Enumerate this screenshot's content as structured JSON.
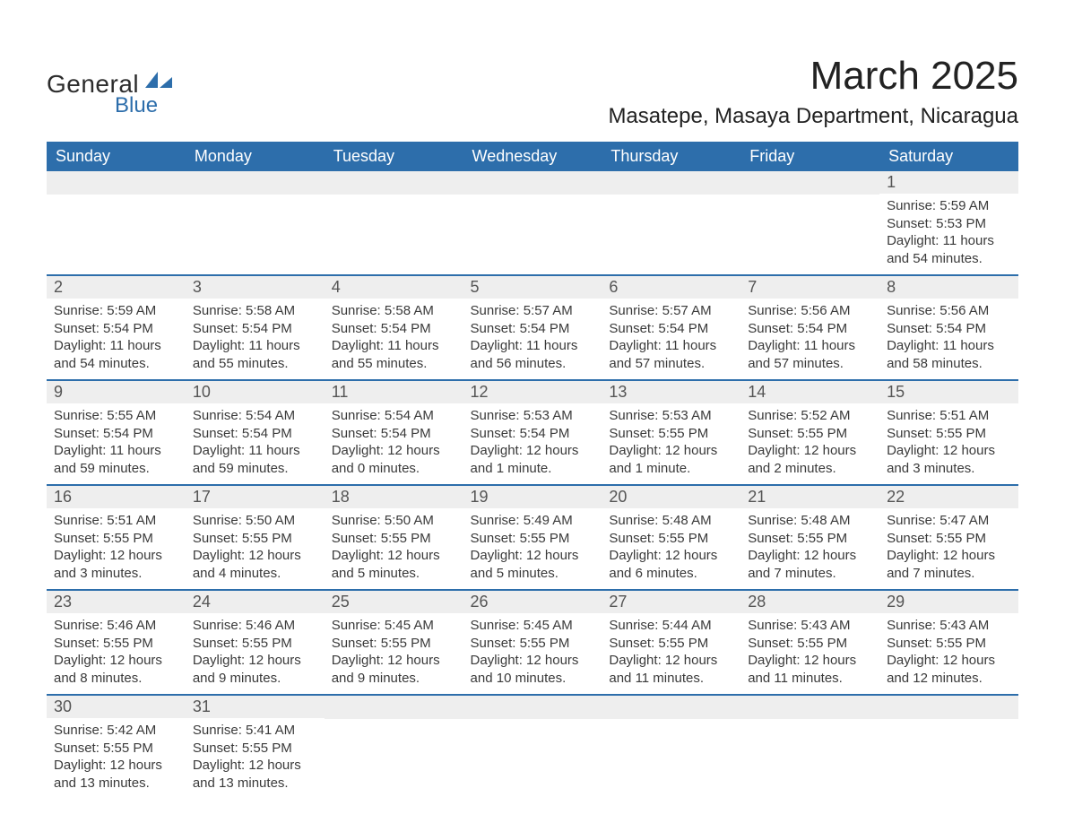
{
  "logo": {
    "general": "General",
    "blue": "Blue"
  },
  "title": "March 2025",
  "location": "Masatepe, Masaya Department, Nicaragua",
  "colors": {
    "header_bg": "#2d6eab",
    "header_text": "#ffffff",
    "daynum_bg": "#eeeeee",
    "row_border": "#2d6eab",
    "text": "#3a3a3a",
    "background": "#ffffff"
  },
  "table": {
    "columns": [
      "Sunday",
      "Monday",
      "Tuesday",
      "Wednesday",
      "Thursday",
      "Friday",
      "Saturday"
    ],
    "weeks": [
      [
        null,
        null,
        null,
        null,
        null,
        null,
        {
          "n": "1",
          "sr": "5:59 AM",
          "ss": "5:53 PM",
          "dl": "11 hours and 54 minutes."
        }
      ],
      [
        {
          "n": "2",
          "sr": "5:59 AM",
          "ss": "5:54 PM",
          "dl": "11 hours and 54 minutes."
        },
        {
          "n": "3",
          "sr": "5:58 AM",
          "ss": "5:54 PM",
          "dl": "11 hours and 55 minutes."
        },
        {
          "n": "4",
          "sr": "5:58 AM",
          "ss": "5:54 PM",
          "dl": "11 hours and 55 minutes."
        },
        {
          "n": "5",
          "sr": "5:57 AM",
          "ss": "5:54 PM",
          "dl": "11 hours and 56 minutes."
        },
        {
          "n": "6",
          "sr": "5:57 AM",
          "ss": "5:54 PM",
          "dl": "11 hours and 57 minutes."
        },
        {
          "n": "7",
          "sr": "5:56 AM",
          "ss": "5:54 PM",
          "dl": "11 hours and 57 minutes."
        },
        {
          "n": "8",
          "sr": "5:56 AM",
          "ss": "5:54 PM",
          "dl": "11 hours and 58 minutes."
        }
      ],
      [
        {
          "n": "9",
          "sr": "5:55 AM",
          "ss": "5:54 PM",
          "dl": "11 hours and 59 minutes."
        },
        {
          "n": "10",
          "sr": "5:54 AM",
          "ss": "5:54 PM",
          "dl": "11 hours and 59 minutes."
        },
        {
          "n": "11",
          "sr": "5:54 AM",
          "ss": "5:54 PM",
          "dl": "12 hours and 0 minutes."
        },
        {
          "n": "12",
          "sr": "5:53 AM",
          "ss": "5:54 PM",
          "dl": "12 hours and 1 minute."
        },
        {
          "n": "13",
          "sr": "5:53 AM",
          "ss": "5:55 PM",
          "dl": "12 hours and 1 minute."
        },
        {
          "n": "14",
          "sr": "5:52 AM",
          "ss": "5:55 PM",
          "dl": "12 hours and 2 minutes."
        },
        {
          "n": "15",
          "sr": "5:51 AM",
          "ss": "5:55 PM",
          "dl": "12 hours and 3 minutes."
        }
      ],
      [
        {
          "n": "16",
          "sr": "5:51 AM",
          "ss": "5:55 PM",
          "dl": "12 hours and 3 minutes."
        },
        {
          "n": "17",
          "sr": "5:50 AM",
          "ss": "5:55 PM",
          "dl": "12 hours and 4 minutes."
        },
        {
          "n": "18",
          "sr": "5:50 AM",
          "ss": "5:55 PM",
          "dl": "12 hours and 5 minutes."
        },
        {
          "n": "19",
          "sr": "5:49 AM",
          "ss": "5:55 PM",
          "dl": "12 hours and 5 minutes."
        },
        {
          "n": "20",
          "sr": "5:48 AM",
          "ss": "5:55 PM",
          "dl": "12 hours and 6 minutes."
        },
        {
          "n": "21",
          "sr": "5:48 AM",
          "ss": "5:55 PM",
          "dl": "12 hours and 7 minutes."
        },
        {
          "n": "22",
          "sr": "5:47 AM",
          "ss": "5:55 PM",
          "dl": "12 hours and 7 minutes."
        }
      ],
      [
        {
          "n": "23",
          "sr": "5:46 AM",
          "ss": "5:55 PM",
          "dl": "12 hours and 8 minutes."
        },
        {
          "n": "24",
          "sr": "5:46 AM",
          "ss": "5:55 PM",
          "dl": "12 hours and 9 minutes."
        },
        {
          "n": "25",
          "sr": "5:45 AM",
          "ss": "5:55 PM",
          "dl": "12 hours and 9 minutes."
        },
        {
          "n": "26",
          "sr": "5:45 AM",
          "ss": "5:55 PM",
          "dl": "12 hours and 10 minutes."
        },
        {
          "n": "27",
          "sr": "5:44 AM",
          "ss": "5:55 PM",
          "dl": "12 hours and 11 minutes."
        },
        {
          "n": "28",
          "sr": "5:43 AM",
          "ss": "5:55 PM",
          "dl": "12 hours and 11 minutes."
        },
        {
          "n": "29",
          "sr": "5:43 AM",
          "ss": "5:55 PM",
          "dl": "12 hours and 12 minutes."
        }
      ],
      [
        {
          "n": "30",
          "sr": "5:42 AM",
          "ss": "5:55 PM",
          "dl": "12 hours and 13 minutes."
        },
        {
          "n": "31",
          "sr": "5:41 AM",
          "ss": "5:55 PM",
          "dl": "12 hours and 13 minutes."
        },
        null,
        null,
        null,
        null,
        null
      ]
    ],
    "labels": {
      "sunrise": "Sunrise: ",
      "sunset": "Sunset: ",
      "daylight": "Daylight: "
    }
  }
}
